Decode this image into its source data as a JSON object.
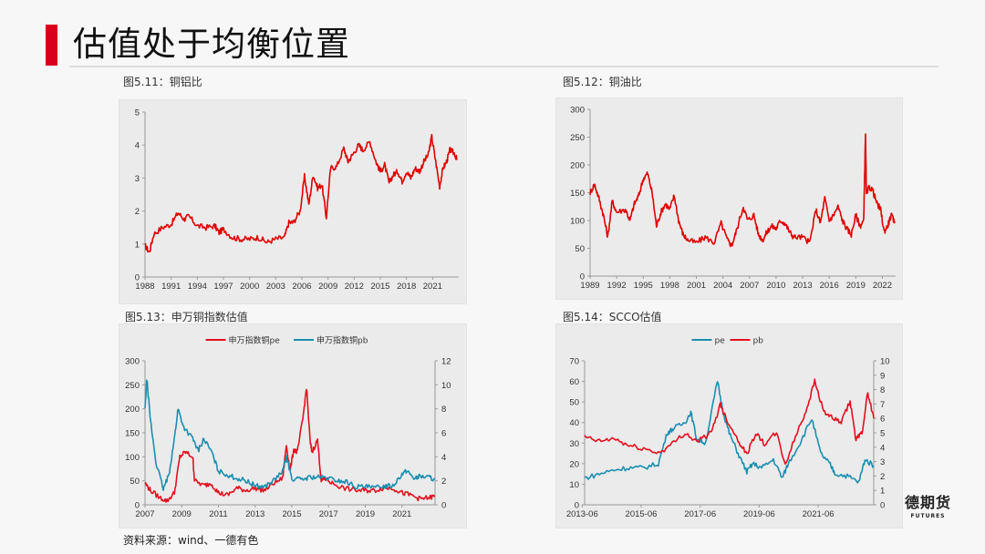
{
  "page": {
    "title": "估值处于均衡位置",
    "accent_color": "#d9001b",
    "source": "资料来源：wind、一德有色",
    "logo": {
      "cn": "德期货",
      "en": "FUTURES"
    }
  },
  "figures": [
    {
      "caption": "图5.11：铜铝比"
    },
    {
      "caption": "图5.12：铜油比"
    },
    {
      "caption": "图5.13：申万铜指数估值"
    },
    {
      "caption": "图5.14：SCCO估值"
    }
  ],
  "chart_data": [
    {
      "id": "fig5_11",
      "type": "line",
      "title": "图5.11：铜铝比",
      "xlabel": "",
      "ylabel": "",
      "x_ticks": [
        "1988",
        "1991",
        "1994",
        "1997",
        "2000",
        "2003",
        "2006",
        "2009",
        "2012",
        "2015",
        "2018",
        "2021"
      ],
      "y_ticks": [
        0,
        1,
        2,
        3,
        4,
        5
      ],
      "xlim": [
        1988,
        2024
      ],
      "ylim": [
        0,
        5
      ],
      "grid": false,
      "series": [
        {
          "name": "铜铝比",
          "color": "#e00000",
          "x": [
            1988,
            1988.5,
            1989,
            1990,
            1991,
            1991.8,
            1992.5,
            1993,
            1994,
            1995,
            1996,
            1996.5,
            1997,
            1998,
            1999,
            2000,
            2001,
            2002,
            2003,
            2004,
            2004.5,
            2005,
            2005.8,
            2006.3,
            2006.8,
            2007.3,
            2007.8,
            2008.3,
            2008.8,
            2009.3,
            2010,
            2010.8,
            2011.3,
            2011.8,
            2012.5,
            2013,
            2013.8,
            2014.5,
            2015,
            2015.5,
            2016,
            2016.5,
            2017,
            2017.5,
            2018,
            2018.5,
            2019,
            2019.5,
            2020,
            2020.5,
            2020.9,
            2021.3,
            2021.8,
            2022.2,
            2022.6,
            2023,
            2023.5,
            2023.8
          ],
          "values": [
            0.95,
            0.75,
            1.3,
            1.5,
            1.6,
            1.95,
            1.75,
            1.85,
            1.55,
            1.5,
            1.55,
            1.35,
            1.45,
            1.2,
            1.15,
            1.15,
            1.2,
            1.05,
            1.15,
            1.2,
            1.65,
            1.65,
            2.0,
            3.05,
            2.2,
            3.1,
            2.7,
            2.8,
            1.8,
            3.3,
            3.35,
            3.9,
            3.5,
            3.7,
            4.0,
            3.85,
            4.1,
            3.5,
            3.2,
            3.4,
            2.85,
            3.1,
            3.2,
            2.9,
            3.2,
            3.0,
            3.3,
            3.2,
            3.5,
            3.7,
            4.25,
            3.6,
            2.75,
            3.3,
            3.5,
            3.85,
            3.75,
            3.55
          ]
        }
      ]
    },
    {
      "id": "fig5_12",
      "type": "line",
      "title": "图5.12：铜油比",
      "xlabel": "",
      "ylabel": "",
      "x_ticks": [
        "1989",
        "1992",
        "1995",
        "1998",
        "2001",
        "2004",
        "2007",
        "2010",
        "2013",
        "2016",
        "2019",
        "2022"
      ],
      "y_ticks": [
        0,
        50,
        100,
        150,
        200,
        250,
        300
      ],
      "xlim": [
        1989,
        2023.5
      ],
      "ylim": [
        0,
        300
      ],
      "grid": false,
      "series": [
        {
          "name": "铜油比",
          "color": "#e00000",
          "x": [
            1989,
            1989.5,
            1990,
            1990.5,
            1991,
            1991.5,
            1992,
            1993,
            1993.5,
            1994,
            1994.5,
            1995,
            1995.5,
            1996,
            1996.5,
            1997,
            1997.5,
            1998,
            1998.5,
            1999,
            1999.5,
            2000,
            2001,
            2002,
            2003,
            2003.8,
            2004.5,
            2005,
            2005.5,
            2006.3,
            2006.8,
            2007.5,
            2008,
            2008.5,
            2009,
            2009.5,
            2010,
            2010.5,
            2011,
            2011.5,
            2012,
            2013,
            2013.8,
            2014.5,
            2015,
            2015.5,
            2016,
            2016.5,
            2017,
            2017.5,
            2018,
            2018.5,
            2019,
            2019.5,
            2019.9,
            2020.1,
            2020.2,
            2020.5,
            2020.9,
            2021.4,
            2021.8,
            2022.2,
            2022.6,
            2023,
            2023.4
          ],
          "values": [
            150,
            165,
            140,
            110,
            70,
            135,
            115,
            120,
            100,
            130,
            145,
            175,
            185,
            150,
            90,
            115,
            130,
            120,
            145,
            100,
            75,
            65,
            60,
            70,
            60,
            95,
            65,
            55,
            80,
            125,
            100,
            110,
            75,
            65,
            80,
            90,
            85,
            100,
            95,
            80,
            70,
            70,
            60,
            120,
            95,
            140,
            100,
            110,
            125,
            100,
            85,
            75,
            110,
            90,
            100,
            260,
            145,
            160,
            155,
            130,
            120,
            80,
            90,
            110,
            95
          ]
        }
      ]
    },
    {
      "id": "fig5_13",
      "type": "line",
      "title": "图5.13：申万铜指数估值",
      "legend": [
        "申万指数铜pe",
        "申万指数铜pb"
      ],
      "legend_position": "top",
      "x_ticks": [
        "2007",
        "2009",
        "2011",
        "2013",
        "2015",
        "2017",
        "2019",
        "2021"
      ],
      "y_ticks_left": [
        0,
        50,
        100,
        150,
        200,
        250,
        300
      ],
      "y_ticks_right": [
        0,
        2,
        4,
        6,
        8,
        10,
        12
      ],
      "xlim": [
        2007,
        2022.8
      ],
      "ylim_left": [
        0,
        300
      ],
      "ylim_right": [
        0,
        12
      ],
      "grid": false,
      "series": [
        {
          "name": "申万指数铜pe",
          "color": "#e3101e",
          "axis": "left",
          "x": [
            2007,
            2007.3,
            2007.8,
            2008.2,
            2008.6,
            2008.9,
            2009.2,
            2009.6,
            2009.7,
            2010.2,
            2010.6,
            2011,
            2011.5,
            2012,
            2012.5,
            2013,
            2013.5,
            2014,
            2014.5,
            2014.7,
            2014.9,
            2015.1,
            2015.3,
            2015.6,
            2015.8,
            2016,
            2016.1,
            2016.4,
            2016.6,
            2016.8,
            2017.2,
            2017.8,
            2018.5,
            2019,
            2019.5,
            2020,
            2020.5,
            2021,
            2021.5,
            2022,
            2022.5,
            2022.8
          ],
          "values": [
            45,
            30,
            15,
            8,
            25,
            100,
            110,
            100,
            50,
            40,
            45,
            25,
            20,
            35,
            30,
            35,
            30,
            45,
            55,
            125,
            70,
            115,
            110,
            180,
            245,
            130,
            110,
            135,
            50,
            55,
            45,
            35,
            30,
            30,
            30,
            35,
            35,
            25,
            20,
            12,
            15,
            18
          ]
        },
        {
          "name": "申万指数铜pb",
          "color": "#1a8fb0",
          "axis": "right",
          "x": [
            2007,
            2007.1,
            2007.3,
            2007.6,
            2008,
            2008.3,
            2008.6,
            2008.8,
            2009.1,
            2009.6,
            2009.9,
            2010.2,
            2010.6,
            2011,
            2011.5,
            2012,
            2012.5,
            2013,
            2013.5,
            2014,
            2014.5,
            2014.7,
            2015,
            2015.5,
            2016,
            2016.5,
            2017,
            2017.5,
            2018,
            2018.5,
            2019,
            2019.5,
            2020,
            2020.5,
            2021,
            2021.3,
            2021.7,
            2022,
            2022.5,
            2022.8
          ],
          "values": [
            8.0,
            10.5,
            7.0,
            3.5,
            1.3,
            2.5,
            5.5,
            8.0,
            6.5,
            5.5,
            4.5,
            5.5,
            4.5,
            2.8,
            2.5,
            2.2,
            2.0,
            1.6,
            1.5,
            2.0,
            2.8,
            4.0,
            2.2,
            2.1,
            2.3,
            2.3,
            2.2,
            2.0,
            1.9,
            1.5,
            1.5,
            1.4,
            1.6,
            1.6,
            2.6,
            2.8,
            2.2,
            2.4,
            2.3,
            2.1
          ]
        }
      ]
    },
    {
      "id": "fig5_14",
      "type": "line",
      "title": "图5.14：SCCO估值",
      "legend": [
        "pe",
        "pb"
      ],
      "legend_position": "top",
      "x_ticks": [
        "2013-06",
        "2015-06",
        "2017-06",
        "2019-06",
        "2021-06"
      ],
      "y_ticks_left": [
        0,
        10,
        20,
        30,
        40,
        50,
        60,
        70
      ],
      "y_ticks_right": [
        0,
        1,
        2,
        3,
        4,
        5,
        6,
        7,
        8,
        9,
        10
      ],
      "xlim": [
        2013.5,
        2023.3
      ],
      "ylim_left": [
        0,
        70
      ],
      "ylim_right": [
        0,
        10
      ],
      "grid": false,
      "series": [
        {
          "name": "pe",
          "color": "#1a8fb0",
          "axis": "left",
          "x": [
            2013.5,
            2014,
            2014.5,
            2015,
            2015.5,
            2016,
            2016.3,
            2016.5,
            2016.9,
            2017.1,
            2017.3,
            2017.6,
            2018,
            2018.2,
            2018.4,
            2018.7,
            2019,
            2019.2,
            2019.5,
            2019.9,
            2020.2,
            2020.4,
            2020.8,
            2021.2,
            2021.5,
            2021.8,
            2022,
            2022.4,
            2022.8,
            2023,
            2023.3
          ],
          "values": [
            13,
            15,
            17,
            18,
            18,
            20,
            35,
            37,
            40,
            45,
            32,
            30,
            60,
            45,
            35,
            25,
            16,
            20,
            18,
            22,
            13,
            20,
            30,
            42,
            25,
            20,
            15,
            14,
            11,
            22,
            19
          ]
        },
        {
          "name": "pb",
          "color": "#e3101e",
          "axis": "right",
          "x": [
            2013.5,
            2014,
            2014.5,
            2015,
            2015.5,
            2016,
            2016.4,
            2016.9,
            2017.3,
            2017.8,
            2018.1,
            2018.3,
            2018.7,
            2019,
            2019.3,
            2019.6,
            2020,
            2020.3,
            2020.7,
            2021,
            2021.3,
            2021.6,
            2021.9,
            2022.2,
            2022.5,
            2022.7,
            2022.9,
            2023.1,
            2023.3
          ],
          "values": [
            4.7,
            4.4,
            4.6,
            4.1,
            3.9,
            3.6,
            4.1,
            5.0,
            4.4,
            5.0,
            7.0,
            6.0,
            4.5,
            3.5,
            5.0,
            4.2,
            5.0,
            2.8,
            5.0,
            6.5,
            8.6,
            6.5,
            6.0,
            5.7,
            7.2,
            4.5,
            5.0,
            7.8,
            6.0
          ]
        }
      ]
    }
  ]
}
